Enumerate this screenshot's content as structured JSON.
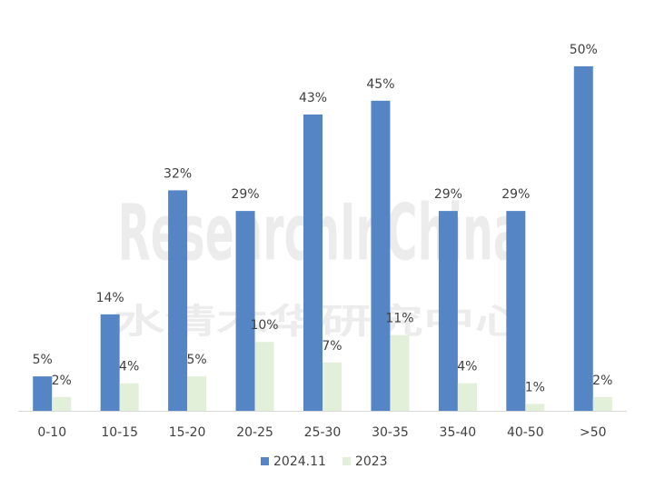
{
  "chart_data": {
    "type": "bar",
    "watermark": "ResearchInChina",
    "watermark_subtitle": "水清木华研究中心",
    "categories": [
      "0-10",
      "10-15",
      "15-20",
      "20-25",
      "25-30",
      "30-35",
      "35-40",
      "40-50",
      ">50"
    ],
    "series": [
      {
        "name": "2024.11",
        "color": "#5585c5",
        "values": [
          5,
          14,
          32,
          29,
          43,
          45,
          29,
          29,
          50
        ],
        "value_labels": [
          "5%",
          "14%",
          "32%",
          "29%",
          "43%",
          "45%",
          "29%",
          "29%",
          "50%"
        ]
      },
      {
        "name": "2023",
        "color": "#e2efd9",
        "values": [
          2,
          4,
          5,
          10,
          7,
          11,
          4,
          1,
          2
        ],
        "value_labels": [
          "2%",
          "4%",
          "5%",
          "10%",
          "7%",
          "11%",
          "4%",
          "1%",
          "2%"
        ]
      }
    ],
    "ylim": [
      0,
      55
    ],
    "legend": "bottom"
  }
}
